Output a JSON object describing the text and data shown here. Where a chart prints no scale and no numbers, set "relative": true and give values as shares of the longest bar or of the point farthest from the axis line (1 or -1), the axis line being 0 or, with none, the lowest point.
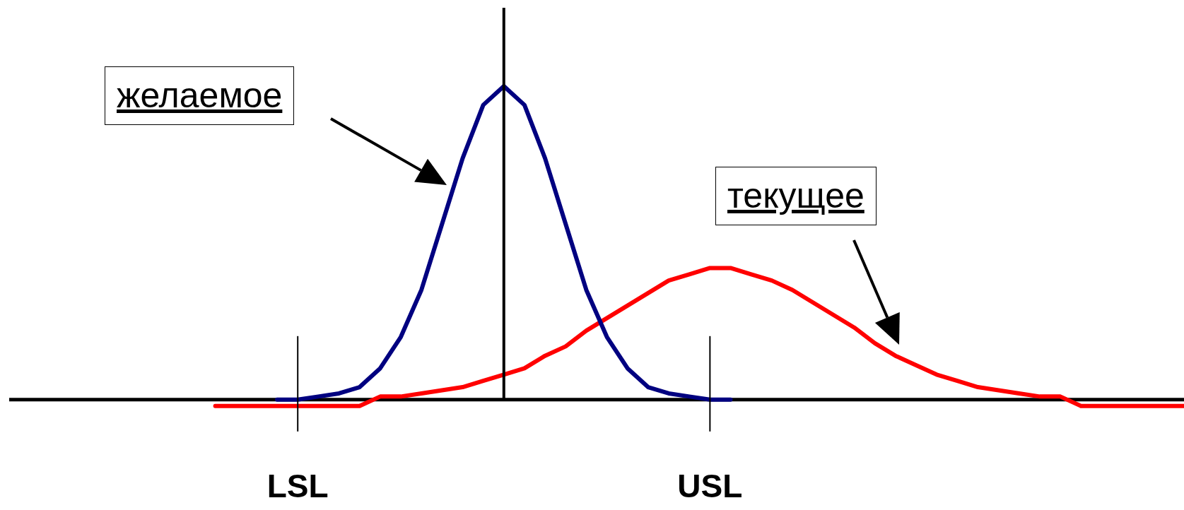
{
  "chart_data": {
    "type": "line",
    "relative": true,
    "marker": "none",
    "categories": [
      null,
      null,
      null,
      null,
      null,
      null,
      null,
      null,
      null,
      null,
      null,
      null,
      null,
      null,
      "LSL",
      null,
      null,
      null,
      null,
      null,
      null,
      null,
      null,
      null,
      null,
      null,
      null,
      null,
      null,
      null,
      null,
      null,
      null,
      null,
      "USL",
      null,
      null,
      null,
      null,
      null,
      null,
      null,
      null,
      null,
      null,
      null,
      null,
      null,
      null,
      null,
      null,
      null,
      null,
      null,
      null,
      null,
      null,
      null
    ],
    "series": [
      {
        "color": "#000080",
        "values": [
          null,
          null,
          null,
          null,
          null,
          null,
          null,
          null,
          null,
          null,
          null,
          null,
          null,
          0,
          0,
          0.01,
          0.02,
          0.04,
          0.1,
          0.2,
          0.35,
          0.56,
          0.77,
          0.94,
          1,
          0.94,
          0.77,
          0.56,
          0.35,
          0.2,
          0.1,
          0.04,
          0.02,
          0.01,
          0,
          0,
          null,
          null,
          null,
          null,
          null,
          null,
          null,
          null,
          null,
          null,
          null,
          null,
          null,
          null,
          null,
          null,
          null,
          null,
          null,
          null,
          null,
          null
        ]
      },
      {
        "color": "#ff0000",
        "values": [
          null,
          null,
          null,
          null,
          null,
          null,
          null,
          null,
          null,
          null,
          -0.02,
          -0.02,
          -0.02,
          -0.02,
          -0.02,
          -0.02,
          -0.02,
          -0.02,
          0.01,
          0.01,
          0.02,
          0.03,
          0.04,
          0.06,
          0.08,
          0.1,
          0.14,
          0.17,
          0.22,
          0.26,
          0.3,
          0.34,
          0.38,
          0.4,
          0.42,
          0.42,
          0.4,
          0.38,
          0.35,
          0.31,
          0.27,
          0.23,
          0.18,
          0.14,
          0.11,
          0.08,
          0.06,
          0.04,
          0.03,
          0.02,
          0.01,
          0.01,
          -0.02,
          -0.02,
          -0.02,
          -0.02,
          -0.02,
          -0.02
        ]
      }
    ],
    "ref_lines": [
      {
        "axis": "x",
        "value": "LSL",
        "color": "#000000"
      },
      {
        "axis": "x",
        "value": "USL",
        "color": "#000000"
      }
    ],
    "annotations": [
      "желаемое",
      "текущее"
    ]
  }
}
